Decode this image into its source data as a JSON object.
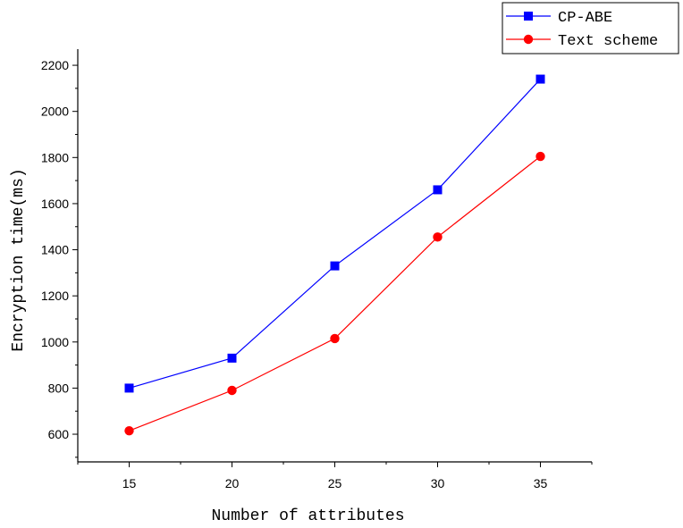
{
  "chart_data": {
    "type": "line",
    "title": "",
    "xlabel": "Number of attributes",
    "ylabel": "Encryption time(ms)",
    "x": [
      15,
      20,
      25,
      30,
      35
    ],
    "xlim": [
      12.5,
      37.5
    ],
    "ylim": [
      480,
      2270
    ],
    "xticks": [
      "15",
      "20",
      "25",
      "30",
      "35"
    ],
    "yticks": [
      "600",
      "800",
      "1000",
      "1200",
      "1400",
      "1600",
      "1800",
      "2000",
      "2200"
    ],
    "grid": false,
    "legend_position": "top-right",
    "series": [
      {
        "name": "CP-ABE",
        "values": [
          800,
          930,
          1330,
          1660,
          2140
        ],
        "color": "#0000ff",
        "marker": "square"
      },
      {
        "name": "Text scheme",
        "values": [
          615,
          790,
          1015,
          1455,
          1805
        ],
        "color": "#ff0000",
        "marker": "circle"
      }
    ]
  }
}
